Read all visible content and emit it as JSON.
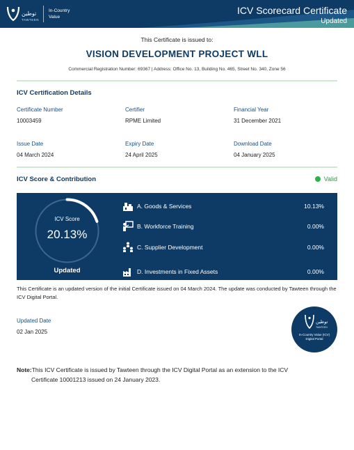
{
  "header": {
    "logo_arabic": "توطين",
    "logo_latin": "TAWTEEN",
    "logo_program_line1": "In-Country",
    "logo_program_line2": "Value",
    "title": "ICV Scorecard Certificate",
    "subtitle": "Updated"
  },
  "intro": {
    "issued_to": "This Certificate is issued to:",
    "company": "VISION DEVELOPMENT PROJECT WLL",
    "registration": "Commercial Registration Number: 69367 | Address: Office No. 13, Building No. 465, Street No. 340, Zone 56"
  },
  "details": {
    "title": "ICV Certification Details",
    "certificate_number_label": "Certificate Number",
    "certificate_number": "10003459",
    "certifier_label": "Certifier",
    "certifier": "RPME Limited",
    "financial_year_label": "Financial Year",
    "financial_year": "31 December 2021",
    "issue_date_label": "Issue Date",
    "issue_date": "04 March 2024",
    "expiry_date_label": "Expiry Date",
    "expiry_date": "24 April 2025",
    "download_date_label": "Download Date",
    "download_date": "04 January 2025"
  },
  "score": {
    "title": "ICV Score & Contribution",
    "status": "Valid",
    "label": "ICV Score",
    "value": "20.13%",
    "fraction": 0.2013,
    "state": "Updated",
    "items": [
      {
        "name": "A. Goods & Services",
        "value": "10.13%",
        "icon": "goods-icon"
      },
      {
        "name": "B. Workforce Training",
        "value": "0.00%",
        "icon": "training-icon"
      },
      {
        "name": "C. Supplier Development",
        "value": "0.00%",
        "icon": "supplier-icon"
      },
      {
        "name": "D. Investments in Fixed Assets",
        "value": "0.00%",
        "icon": "factory-icon"
      }
    ]
  },
  "update_note": "This Certificate is an updated version of the initial Certificate issued on 04 March 2024. The update was conducted by Tawteen through the ICV Digital Portal.",
  "updated_date_label": "Updated Date",
  "updated_date": "02 Jan 2025",
  "seal": {
    "arabic": "توطين",
    "latin": "TAWTEEN",
    "line1": "In-Country Value (ICV)",
    "line2": "Digital Portal"
  },
  "footnote": {
    "prefix": "Note:",
    "line1": "This ICV Certificate is issued by Tawteen through the ICV Digital Portal as an extension to the ICV",
    "line2": "Certificate 10001213 issued on 24 January 2023."
  },
  "colors": {
    "navy": "#0d3b66",
    "accent_green": "#2bb34a",
    "rule_green": "#cfe8d2"
  }
}
